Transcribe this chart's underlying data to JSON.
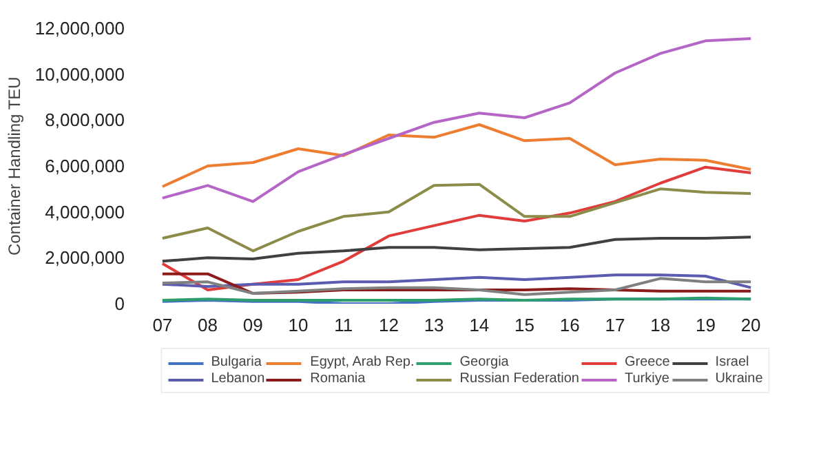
{
  "chart_data": {
    "type": "line",
    "ylabel": "Container Handling TEU",
    "categories": [
      "07",
      "08",
      "09",
      "10",
      "11",
      "12",
      "13",
      "14",
      "15",
      "16",
      "17",
      "18",
      "19",
      "20"
    ],
    "ylim": [
      0,
      12000000
    ],
    "yticks": [
      0,
      {
        "value": 2000000,
        "label": "2,000,000"
      },
      {
        "value": 4000000,
        "label": "4,000,000"
      },
      {
        "value": 6000000,
        "label": "6,000,000"
      },
      {
        "value": 8000000,
        "label": "8,000,000"
      },
      {
        "value": 10000000,
        "label": "10,000,000"
      },
      {
        "value": 12000000,
        "label": "12,000,000"
      }
    ],
    "grid": false,
    "legend": "bottom",
    "line_style": "solid",
    "marker": "none",
    "series": [
      {
        "name": "Bulgaria",
        "color": "#4472c4",
        "values": [
          100000,
          150000,
          100000,
          100000,
          0,
          0,
          100000,
          150000,
          150000,
          150000,
          200000,
          200000,
          200000,
          200000
        ]
      },
      {
        "name": "Egypt, Arab Rep.",
        "color": "#ed7d31",
        "values": [
          5100000,
          6000000,
          6150000,
          6750000,
          6450000,
          7350000,
          7250000,
          7800000,
          7100000,
          7200000,
          6050000,
          6300000,
          6250000,
          5850000
        ]
      },
      {
        "name": "Georgia",
        "color": "#2e9e6e",
        "values": [
          150000,
          200000,
          150000,
          150000,
          150000,
          150000,
          150000,
          200000,
          150000,
          200000,
          200000,
          200000,
          250000,
          200000
        ]
      },
      {
        "name": "Greece",
        "color": "#e03c3c",
        "values": [
          1750000,
          600000,
          850000,
          1050000,
          1850000,
          2950000,
          3400000,
          3850000,
          3600000,
          3950000,
          4450000,
          5250000,
          5950000,
          5700000
        ]
      },
      {
        "name": "Israel",
        "color": "#404040",
        "values": [
          1850000,
          2000000,
          1950000,
          2200000,
          2300000,
          2450000,
          2450000,
          2350000,
          2400000,
          2450000,
          2800000,
          2850000,
          2850000,
          2900000
        ]
      },
      {
        "name": "Lebanon",
        "color": "#5b5bb0",
        "values": [
          850000,
          750000,
          850000,
          850000,
          950000,
          950000,
          1050000,
          1150000,
          1050000,
          1150000,
          1250000,
          1250000,
          1200000,
          700000
        ]
      },
      {
        "name": "Romania",
        "color": "#8b1a1a",
        "values": [
          1300000,
          1300000,
          450000,
          500000,
          600000,
          600000,
          600000,
          600000,
          600000,
          650000,
          600000,
          550000,
          550000,
          550000
        ]
      },
      {
        "name": "Russian Federation",
        "color": "#8c8c4a",
        "values": [
          2850000,
          3300000,
          2300000,
          3150000,
          3800000,
          4000000,
          5150000,
          5200000,
          3800000,
          3800000,
          4400000,
          5000000,
          4850000,
          4800000
        ]
      },
      {
        "name": "Turkiye",
        "color": "#b565c5",
        "values": [
          4600000,
          5150000,
          4450000,
          5750000,
          6500000,
          7200000,
          7900000,
          8300000,
          8100000,
          8750000,
          10050000,
          10900000,
          11450000,
          11550000
        ]
      },
      {
        "name": "Ukraine",
        "color": "#808080",
        "values": [
          900000,
          950000,
          450000,
          550000,
          650000,
          700000,
          700000,
          600000,
          400000,
          500000,
          600000,
          1100000,
          950000,
          950000
        ]
      }
    ]
  }
}
